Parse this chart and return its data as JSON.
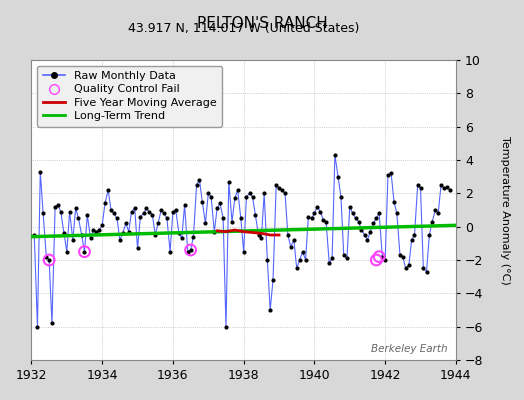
{
  "title": "PELTON'S RANCH",
  "subtitle": "43.917 N, 114.017 W (United States)",
  "ylabel": "Temperature Anomaly (°C)",
  "watermark": "Berkeley Earth",
  "xlim": [
    1932,
    1944
  ],
  "ylim": [
    -8,
    10
  ],
  "yticks": [
    -8,
    -6,
    -4,
    -2,
    0,
    2,
    4,
    6,
    8,
    10
  ],
  "xticks": [
    1932,
    1934,
    1936,
    1938,
    1940,
    1942,
    1944
  ],
  "bg_color": "#d8d8d8",
  "plot_bg_color": "#ffffff",
  "raw_line_color": "#5566ff",
  "raw_dot_color": "#000000",
  "qc_color": "#ff44ff",
  "ma_color": "#cc0000",
  "trend_color": "#00bb00",
  "raw_x": [
    1932.08,
    1932.17,
    1932.25,
    1932.33,
    1932.42,
    1932.5,
    1932.58,
    1932.67,
    1932.75,
    1932.83,
    1932.92,
    1933.0,
    1933.08,
    1933.17,
    1933.25,
    1933.33,
    1933.42,
    1933.5,
    1933.58,
    1933.67,
    1933.75,
    1933.83,
    1933.92,
    1934.0,
    1934.08,
    1934.17,
    1934.25,
    1934.33,
    1934.42,
    1934.5,
    1934.58,
    1934.67,
    1934.75,
    1934.83,
    1934.92,
    1935.0,
    1935.08,
    1935.17,
    1935.25,
    1935.33,
    1935.42,
    1935.5,
    1935.58,
    1935.67,
    1935.75,
    1935.83,
    1935.92,
    1936.0,
    1936.08,
    1936.17,
    1936.25,
    1936.33,
    1936.42,
    1936.5,
    1936.58,
    1936.67,
    1936.75,
    1936.83,
    1936.92,
    1937.0,
    1937.08,
    1937.17,
    1937.25,
    1937.33,
    1937.42,
    1937.5,
    1937.58,
    1937.67,
    1937.75,
    1937.83,
    1937.92,
    1938.0,
    1938.08,
    1938.17,
    1938.25,
    1938.33,
    1938.42,
    1938.5,
    1938.58,
    1938.67,
    1938.75,
    1938.83,
    1938.92,
    1939.0,
    1939.08,
    1939.17,
    1939.25,
    1939.33,
    1939.42,
    1939.5,
    1939.58,
    1939.67,
    1939.75,
    1939.83,
    1939.92,
    1940.0,
    1940.08,
    1940.17,
    1940.25,
    1940.33,
    1940.42,
    1940.5,
    1940.58,
    1940.67,
    1940.75,
    1940.83,
    1940.92,
    1941.0,
    1941.08,
    1941.17,
    1941.25,
    1941.33,
    1941.42,
    1941.5,
    1941.58,
    1941.67,
    1941.75,
    1941.83,
    1941.92,
    1942.0,
    1942.08,
    1942.17,
    1942.25,
    1942.33,
    1942.42,
    1942.5,
    1942.58,
    1942.67,
    1942.75,
    1942.83,
    1942.92,
    1943.0,
    1943.08,
    1943.17,
    1943.25,
    1943.33,
    1943.42,
    1943.5,
    1943.58,
    1943.67,
    1943.75,
    1943.83
  ],
  "raw_y": [
    -0.5,
    -6.0,
    3.3,
    0.8,
    -1.8,
    -2.0,
    -5.8,
    1.2,
    1.3,
    0.9,
    -0.4,
    -1.5,
    0.9,
    -0.8,
    1.1,
    0.5,
    -0.5,
    -1.5,
    0.7,
    -0.7,
    -0.2,
    -0.3,
    -0.2,
    0.1,
    1.4,
    2.2,
    1.0,
    0.8,
    0.5,
    -0.8,
    -0.4,
    0.2,
    -0.3,
    0.9,
    1.1,
    -1.3,
    0.6,
    0.8,
    1.1,
    0.9,
    0.7,
    -0.5,
    0.2,
    1.0,
    0.8,
    0.5,
    -1.5,
    0.9,
    1.0,
    -0.4,
    -0.7,
    1.3,
    -1.5,
    -1.4,
    -0.6,
    2.5,
    2.8,
    1.5,
    0.2,
    2.0,
    1.8,
    -0.3,
    1.1,
    1.4,
    0.5,
    -6.0,
    2.7,
    0.3,
    1.7,
    2.2,
    0.5,
    -1.5,
    1.8,
    2.0,
    1.8,
    0.7,
    -0.5,
    -0.7,
    2.0,
    -2.0,
    -5.0,
    -3.2,
    2.5,
    2.3,
    2.2,
    2.0,
    -0.5,
    -1.2,
    -0.8,
    -2.5,
    -2.0,
    -1.5,
    -2.0,
    0.6,
    0.5,
    0.8,
    1.2,
    0.9,
    0.4,
    0.3,
    -2.2,
    -1.9,
    4.3,
    3.0,
    1.8,
    -1.7,
    -1.9,
    1.2,
    0.8,
    0.5,
    0.3,
    -0.2,
    -0.5,
    -0.8,
    -0.3,
    0.2,
    0.5,
    0.8,
    -1.8,
    -2.0,
    3.1,
    3.2,
    1.5,
    0.8,
    -1.7,
    -1.8,
    -2.5,
    -2.3,
    -0.8,
    -0.5,
    2.5,
    2.3,
    -2.5,
    -2.7,
    -0.5,
    0.3,
    1.0,
    0.8,
    2.5,
    2.3,
    2.4,
    2.2
  ],
  "qc_fail_x": [
    1932.5,
    1933.5,
    1936.5,
    1941.75,
    1941.83
  ],
  "qc_fail_y": [
    -2.0,
    -1.5,
    -1.4,
    -2.0,
    -1.8
  ],
  "ma_x": [
    1937.25,
    1937.5,
    1937.75,
    1938.0,
    1938.25,
    1938.5,
    1938.75,
    1939.0
  ],
  "ma_y": [
    -0.25,
    -0.3,
    -0.2,
    -0.3,
    -0.35,
    -0.4,
    -0.5,
    -0.5
  ],
  "trend_x": [
    1932.0,
    1944.0
  ],
  "trend_y": [
    -0.6,
    0.08
  ],
  "legend_fontsize": 8,
  "title_fontsize": 11,
  "subtitle_fontsize": 9,
  "tick_labelsize": 9,
  "ylabel_fontsize": 8
}
